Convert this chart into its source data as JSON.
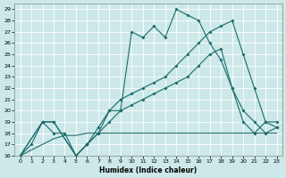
{
  "bg_color": "#cce8e8",
  "grid_color": "#b8d8d8",
  "line_color": "#1a6b6b",
  "xlabel": "Humidex (Indice chaleur)",
  "xlim": [
    -0.5,
    23.5
  ],
  "ylim": [
    16,
    29.5
  ],
  "yticks": [
    16,
    17,
    18,
    19,
    20,
    21,
    22,
    23,
    24,
    25,
    26,
    27,
    28,
    29
  ],
  "xticks": [
    0,
    1,
    2,
    3,
    4,
    5,
    6,
    7,
    8,
    9,
    10,
    11,
    12,
    13,
    14,
    15,
    16,
    17,
    18,
    19,
    20,
    21,
    22,
    23
  ],
  "series": [
    {
      "x": [
        0,
        1,
        2,
        3,
        4,
        5,
        6,
        7,
        8,
        9,
        10,
        11,
        12,
        13,
        14,
        15,
        16,
        17,
        18,
        19,
        20,
        21,
        22,
        23
      ],
      "y": [
        16,
        17,
        19,
        18,
        18,
        16,
        17,
        18.5,
        20,
        20,
        27,
        26.5,
        27.5,
        26.5,
        29,
        28.5,
        28,
        26,
        24.5,
        22,
        19,
        18,
        19,
        18.5
      ],
      "marker": true
    },
    {
      "x": [
        0,
        2,
        3,
        5,
        6,
        7,
        8,
        9,
        10,
        11,
        12,
        13,
        14,
        15,
        16,
        17,
        18,
        19,
        20,
        21,
        22,
        23
      ],
      "y": [
        16,
        19,
        19,
        16,
        17,
        18,
        20,
        21,
        21.5,
        22,
        22.5,
        23,
        24,
        25,
        26,
        27,
        27.5,
        28,
        25,
        22,
        19,
        19
      ],
      "marker": true
    },
    {
      "x": [
        0,
        1,
        2,
        3,
        4,
        5,
        6,
        7,
        8,
        9,
        10,
        11,
        12,
        13,
        14,
        15,
        16,
        17,
        18,
        19,
        20,
        21,
        22,
        23
      ],
      "y": [
        16,
        16.5,
        17,
        17.5,
        17.8,
        17.8,
        18.0,
        18.0,
        18.0,
        18.0,
        18.0,
        18.0,
        18.0,
        18.0,
        18.0,
        18.0,
        18.0,
        18.0,
        18.0,
        18.0,
        18.0,
        18.0,
        18.0,
        18.0
      ],
      "marker": false
    },
    {
      "x": [
        0,
        2,
        3,
        5,
        6,
        7,
        8,
        9,
        10,
        11,
        12,
        13,
        14,
        15,
        16,
        17,
        18,
        19,
        20,
        21,
        22,
        23
      ],
      "y": [
        16,
        19,
        19,
        16,
        17,
        18,
        19,
        20,
        20.5,
        21,
        21.5,
        22,
        22.5,
        23,
        24,
        25,
        25.5,
        22,
        20,
        19,
        18,
        18.5
      ],
      "marker": true
    }
  ]
}
